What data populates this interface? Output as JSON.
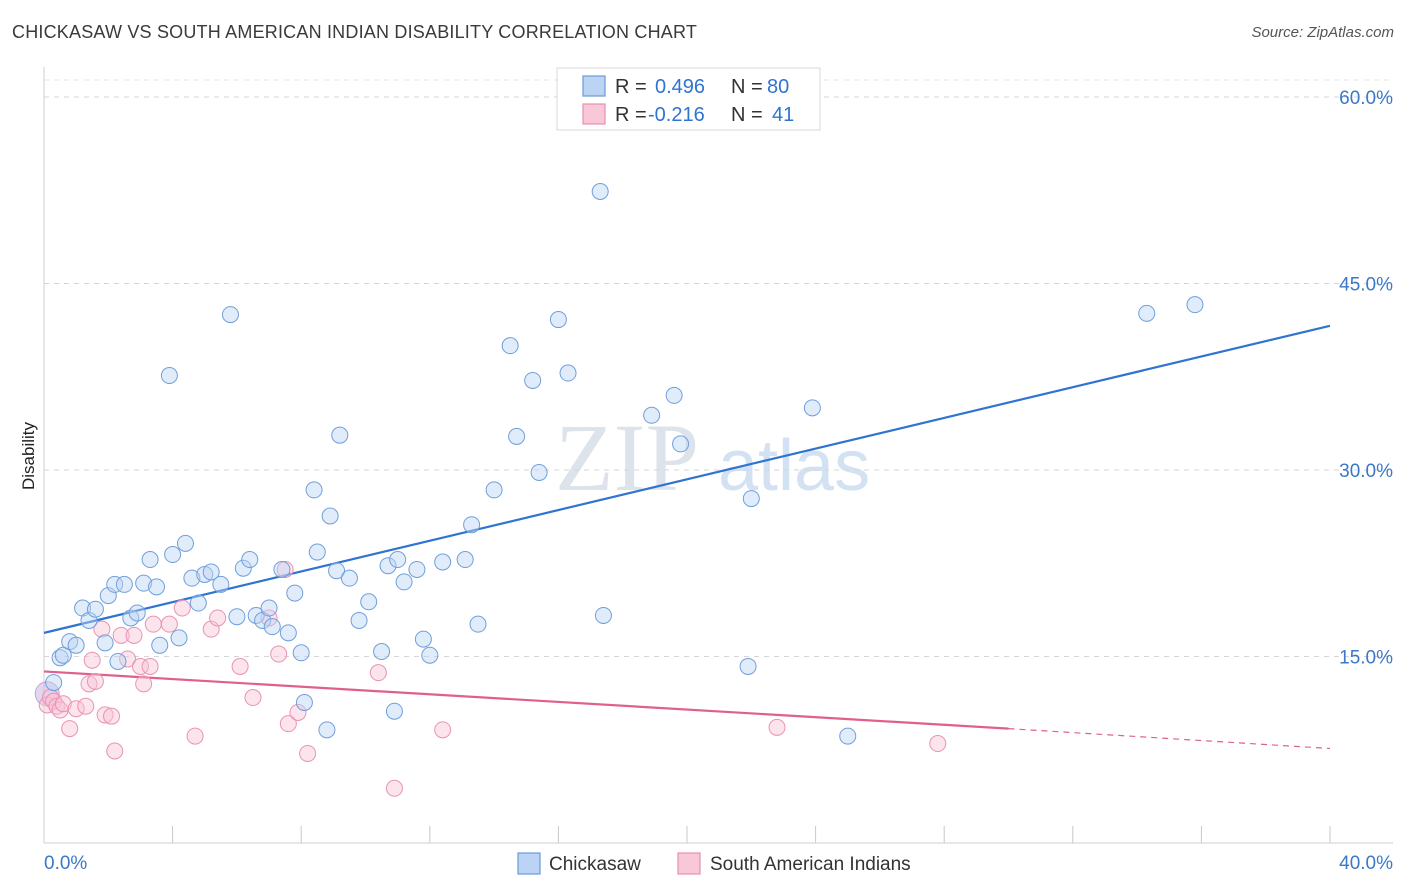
{
  "header": {
    "title": "CHICKASAW VS SOUTH AMERICAN INDIAN DISABILITY CORRELATION CHART",
    "source": "Source: ZipAtlas.com"
  },
  "watermark": {
    "zip": "ZIP",
    "atlas": "atlas"
  },
  "legend": {
    "rows": [
      {
        "r_label": "R =",
        "r_value": "0.496",
        "n_label": "N =",
        "n_value": "80"
      },
      {
        "r_label": "R =",
        "r_value": "-0.216",
        "n_label": "N =",
        "n_value": "41"
      }
    ]
  },
  "chart_data": {
    "type": "scatter",
    "ylabel": "Disability",
    "xlim": [
      0,
      40
    ],
    "ylim": [
      0,
      60
    ],
    "x_tick_labels": [
      "0.0%",
      "40.0%"
    ],
    "y_ticks": [
      15,
      30,
      45,
      60
    ],
    "y_tick_labels": [
      "15.0%",
      "30.0%",
      "45.0%",
      "60.0%"
    ],
    "grid": true,
    "legend_position": "top-center",
    "colors": {
      "chickasaw": "#5b8fd4",
      "south_american": "#e8799e",
      "blue_line": "#2f74d0",
      "pink_line": "#e0608d"
    },
    "series": [
      {
        "name": "Chickasaw",
        "points": [
          [
            0.3,
            12.9
          ],
          [
            0.5,
            14.9
          ],
          [
            0.6,
            15.1
          ],
          [
            0.8,
            16.2
          ],
          [
            1.0,
            15.9
          ],
          [
            1.2,
            18.9
          ],
          [
            1.4,
            17.9
          ],
          [
            1.6,
            18.8
          ],
          [
            1.9,
            16.1
          ],
          [
            2.0,
            19.9
          ],
          [
            2.2,
            20.8
          ],
          [
            2.3,
            14.6
          ],
          [
            2.5,
            20.8
          ],
          [
            2.7,
            18.1
          ],
          [
            2.9,
            18.5
          ],
          [
            3.1,
            20.9
          ],
          [
            3.3,
            22.8
          ],
          [
            3.5,
            20.6
          ],
          [
            3.6,
            15.9
          ],
          [
            3.9,
            37.6
          ],
          [
            4.0,
            23.2
          ],
          [
            4.2,
            16.5
          ],
          [
            4.4,
            24.1
          ],
          [
            4.6,
            21.3
          ],
          [
            4.8,
            19.3
          ],
          [
            5.0,
            21.6
          ],
          [
            5.2,
            21.8
          ],
          [
            5.5,
            20.8
          ],
          [
            5.8,
            42.5
          ],
          [
            6.0,
            18.2
          ],
          [
            6.2,
            22.1
          ],
          [
            6.4,
            22.8
          ],
          [
            6.6,
            18.3
          ],
          [
            6.8,
            17.9
          ],
          [
            7.0,
            18.9
          ],
          [
            7.1,
            17.4
          ],
          [
            7.4,
            22.0
          ],
          [
            7.6,
            16.9
          ],
          [
            7.8,
            20.1
          ],
          [
            8.0,
            15.3
          ],
          [
            8.1,
            11.3
          ],
          [
            8.4,
            28.4
          ],
          [
            8.5,
            23.4
          ],
          [
            8.8,
            9.1
          ],
          [
            8.9,
            26.3
          ],
          [
            9.1,
            21.9
          ],
          [
            9.2,
            32.8
          ],
          [
            9.5,
            21.3
          ],
          [
            9.8,
            17.9
          ],
          [
            10.1,
            19.4
          ],
          [
            10.5,
            15.4
          ],
          [
            10.7,
            22.3
          ],
          [
            10.9,
            10.6
          ],
          [
            11.0,
            22.8
          ],
          [
            11.2,
            21.0
          ],
          [
            11.6,
            22.0
          ],
          [
            11.8,
            16.4
          ],
          [
            12.0,
            15.1
          ],
          [
            12.4,
            22.6
          ],
          [
            13.1,
            22.8
          ],
          [
            13.3,
            25.6
          ],
          [
            13.5,
            17.6
          ],
          [
            14.0,
            28.4
          ],
          [
            14.5,
            40.0
          ],
          [
            14.7,
            32.7
          ],
          [
            15.2,
            37.2
          ],
          [
            15.4,
            29.8
          ],
          [
            16.0,
            42.1
          ],
          [
            16.3,
            37.8
          ],
          [
            17.3,
            52.4
          ],
          [
            17.4,
            18.3
          ],
          [
            18.9,
            34.4
          ],
          [
            19.6,
            36.0
          ],
          [
            19.8,
            32.1
          ],
          [
            21.9,
            14.2
          ],
          [
            22.0,
            27.7
          ],
          [
            23.9,
            35.0
          ],
          [
            25.0,
            8.6
          ],
          [
            34.3,
            42.6
          ],
          [
            35.8,
            43.3
          ]
        ]
      },
      {
        "name": "South American Indians",
        "points": [
          [
            0.1,
            11.1
          ],
          [
            0.2,
            11.7
          ],
          [
            0.3,
            11.4
          ],
          [
            0.4,
            11.0
          ],
          [
            0.5,
            10.7
          ],
          [
            0.6,
            11.2
          ],
          [
            0.8,
            9.2
          ],
          [
            1.0,
            10.8
          ],
          [
            1.3,
            11.0
          ],
          [
            1.4,
            12.8
          ],
          [
            1.5,
            14.7
          ],
          [
            1.6,
            13.0
          ],
          [
            1.8,
            17.2
          ],
          [
            1.9,
            10.3
          ],
          [
            2.1,
            10.2
          ],
          [
            2.2,
            7.4
          ],
          [
            2.4,
            16.7
          ],
          [
            2.6,
            14.8
          ],
          [
            2.8,
            16.7
          ],
          [
            3.0,
            14.2
          ],
          [
            3.1,
            12.8
          ],
          [
            3.3,
            14.2
          ],
          [
            3.4,
            17.6
          ],
          [
            3.9,
            17.6
          ],
          [
            4.3,
            18.9
          ],
          [
            4.7,
            8.6
          ],
          [
            5.2,
            17.2
          ],
          [
            5.4,
            18.1
          ],
          [
            6.1,
            14.2
          ],
          [
            6.5,
            11.7
          ],
          [
            7.0,
            18.1
          ],
          [
            7.3,
            15.2
          ],
          [
            7.6,
            9.6
          ],
          [
            7.5,
            22.0
          ],
          [
            7.9,
            10.5
          ],
          [
            8.2,
            7.2
          ],
          [
            10.4,
            13.7
          ],
          [
            10.9,
            4.4
          ],
          [
            12.4,
            9.1
          ],
          [
            22.8,
            9.3
          ],
          [
            27.8,
            8.0
          ]
        ]
      }
    ],
    "trend_lines": [
      {
        "series": "Chickasaw",
        "x": [
          0,
          40
        ],
        "y": [
          16.9,
          41.6
        ]
      },
      {
        "series": "South American Indians",
        "x": [
          0,
          30,
          40
        ],
        "y": [
          13.8,
          9.2,
          7.6
        ]
      }
    ]
  },
  "bottom_legend": {
    "items": [
      {
        "label": "Chickasaw"
      },
      {
        "label": "South American Indians"
      }
    ]
  }
}
